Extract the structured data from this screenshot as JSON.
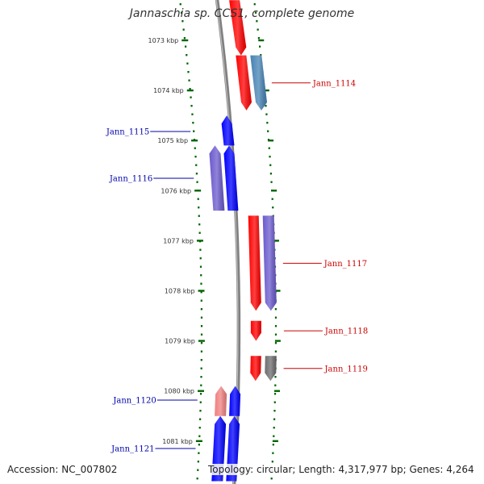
{
  "title": "Jannaschia sp. CCS1, complete genome",
  "footer": {
    "accession": "Accession: NC_007802",
    "topology": "Topology: circular",
    "length": "Length: 4,317,977 bp",
    "genes": "Genes: 4,264"
  },
  "colors": {
    "forward_cds": "#ff0000",
    "reverse_cds": "#0000ff",
    "forward_label": "#cc0000",
    "reverse_label": "#0000aa",
    "steelblue_gene": "#4682b4",
    "purple_gene": "#6a5acd",
    "gray_gene": "#6e6e6e",
    "pink_gene": "#f08080",
    "tick": "#006400",
    "backbone": "#808080"
  },
  "kbp_ticks": [
    {
      "kbp": 1073,
      "label": "1073 kbp"
    },
    {
      "kbp": 1074,
      "label": "1074 kbp"
    },
    {
      "kbp": 1075,
      "label": "1075 kbp"
    },
    {
      "kbp": 1076,
      "label": "1076 kbp"
    },
    {
      "kbp": 1077,
      "label": "1077 kbp"
    },
    {
      "kbp": 1078,
      "label": "1078 kbp"
    },
    {
      "kbp": 1079,
      "label": "1079 kbp"
    },
    {
      "kbp": 1080,
      "label": "1080 kbp"
    },
    {
      "kbp": 1081,
      "label": "1081 kbp"
    }
  ],
  "genes": [
    {
      "name": "",
      "strand": "forward",
      "ring": "inner",
      "start_kbp": 1072.2,
      "end_kbp": 1073.3,
      "color": "#ff0000",
      "label_color": "#cc0000"
    },
    {
      "name": "",
      "strand": "forward",
      "ring": "inner",
      "start_kbp": 1073.3,
      "end_kbp": 1074.4,
      "color": "#ff0000",
      "label_color": "#cc0000"
    },
    {
      "name": "Jann_1114",
      "strand": "forward",
      "ring": "outer",
      "start_kbp": 1073.3,
      "end_kbp": 1074.4,
      "color": "#4682b4",
      "label_color": "#cc0000"
    },
    {
      "name": "Jann_1115",
      "strand": "reverse",
      "ring": "inner",
      "start_kbp": 1074.5,
      "end_kbp": 1075.1,
      "color": "#0000ff",
      "label_color": "#0000aa"
    },
    {
      "name": "Jann_1116",
      "strand": "reverse",
      "ring": "outer",
      "start_kbp": 1075.1,
      "end_kbp": 1076.4,
      "color": "#6a5acd",
      "label_color": "#0000aa"
    },
    {
      "name": "",
      "strand": "reverse",
      "ring": "inner",
      "start_kbp": 1075.1,
      "end_kbp": 1076.4,
      "color": "#0000ff",
      "label_color": "#0000aa"
    },
    {
      "name": "",
      "strand": "forward",
      "ring": "inner",
      "start_kbp": 1076.5,
      "end_kbp": 1078.4,
      "color": "#ff0000",
      "label_color": "#cc0000"
    },
    {
      "name": "Jann_1117",
      "strand": "forward",
      "ring": "outer",
      "start_kbp": 1076.5,
      "end_kbp": 1078.4,
      "color": "#6a5acd",
      "label_color": "#cc0000"
    },
    {
      "name": "Jann_1118",
      "strand": "forward",
      "ring": "inner",
      "start_kbp": 1078.6,
      "end_kbp": 1079.0,
      "color": "#ff0000",
      "label_color": "#cc0000"
    },
    {
      "name": "",
      "strand": "forward",
      "ring": "inner",
      "start_kbp": 1079.3,
      "end_kbp": 1079.8,
      "color": "#ff0000",
      "label_color": "#cc0000"
    },
    {
      "name": "Jann_1119",
      "strand": "forward",
      "ring": "outer",
      "start_kbp": 1079.3,
      "end_kbp": 1079.8,
      "color": "#6e6e6e",
      "label_color": "#cc0000"
    },
    {
      "name": "Jann_1120",
      "strand": "reverse",
      "ring": "outer",
      "start_kbp": 1079.9,
      "end_kbp": 1080.5,
      "color": "#f08080",
      "label_color": "#0000aa"
    },
    {
      "name": "",
      "strand": "reverse",
      "ring": "inner",
      "start_kbp": 1079.9,
      "end_kbp": 1080.5,
      "color": "#0000ff",
      "label_color": "#0000aa"
    },
    {
      "name": "Jann_1121",
      "strand": "reverse",
      "ring": "outer",
      "start_kbp": 1080.5,
      "end_kbp": 1081.8,
      "color": "#0000ff",
      "label_color": "#0000aa"
    },
    {
      "name": "",
      "strand": "reverse",
      "ring": "inner",
      "start_kbp": 1080.5,
      "end_kbp": 1081.8,
      "color": "#0000ff",
      "label_color": "#0000aa"
    }
  ]
}
